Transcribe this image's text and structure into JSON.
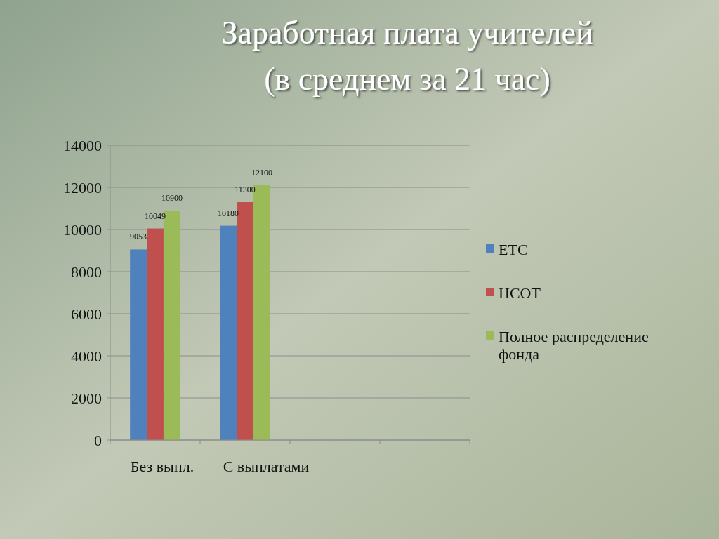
{
  "chart_data": {
    "type": "bar",
    "title": "Заработная плата учителей",
    "subtitle": "(в среднем за 21 час)",
    "categories": [
      "Без выпл.",
      "С выплатами",
      null,
      null
    ],
    "series": [
      {
        "name": "ЕТС",
        "color": "#4f81bd",
        "values": [
          9053,
          10180,
          null,
          null
        ]
      },
      {
        "name": "НСОТ",
        "color": "#c0504d",
        "values": [
          10049,
          11300,
          null,
          null
        ]
      },
      {
        "name": "Полное распределение фонда",
        "color": "#9bbb59",
        "values": [
          10900,
          12100,
          null,
          null
        ]
      }
    ],
    "ylim": [
      0,
      14000
    ],
    "yticks": [
      0,
      2000,
      4000,
      6000,
      8000,
      10000,
      12000,
      14000
    ],
    "grid": "y",
    "legend": "right",
    "data_labels": true
  }
}
